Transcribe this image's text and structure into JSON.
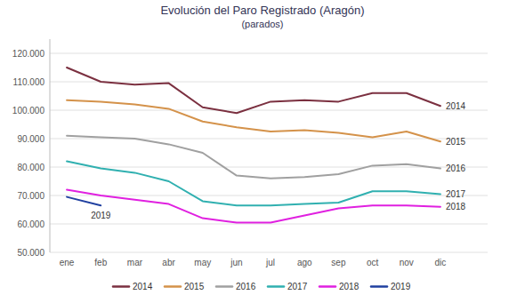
{
  "chart_data": {
    "type": "line",
    "title": "Evolución del Paro Registrado (Aragón)",
    "subtitle": "(parados)",
    "categories": [
      "ene",
      "feb",
      "mar",
      "abr",
      "may",
      "jun",
      "jul",
      "ago",
      "sep",
      "oct",
      "nov",
      "dic"
    ],
    "series": [
      {
        "name": "2014",
        "color": "#7B3040",
        "values": [
          115000,
          110000,
          109000,
          109500,
          101000,
          99000,
          103000,
          103500,
          103000,
          106000,
          106000,
          101500
        ]
      },
      {
        "name": "2015",
        "color": "#D4924A",
        "values": [
          103500,
          103000,
          102000,
          100500,
          96000,
          94000,
          92500,
          93000,
          92000,
          90500,
          92500,
          89000
        ]
      },
      {
        "name": "2016",
        "color": "#A0A0A0",
        "values": [
          91000,
          90500,
          90000,
          88000,
          85000,
          77000,
          76000,
          76500,
          77500,
          80500,
          81000,
          79500
        ]
      },
      {
        "name": "2017",
        "color": "#30B0B0",
        "values": [
          82000,
          79500,
          78000,
          75000,
          68000,
          66500,
          66500,
          67000,
          67500,
          71500,
          71500,
          70500
        ]
      },
      {
        "name": "2018",
        "color": "#E020E0",
        "values": [
          72000,
          70000,
          68500,
          67000,
          62000,
          60500,
          60500,
          63000,
          65500,
          66500,
          66500,
          66000
        ]
      },
      {
        "name": "2019",
        "color": "#2040A0",
        "values": [
          69500,
          66500,
          null,
          null,
          null,
          null,
          null,
          null,
          null,
          null,
          null,
          null
        ]
      }
    ],
    "ylim": [
      50000,
      125000
    ],
    "yticks": [
      {
        "value": 50000,
        "label": "50.000"
      },
      {
        "value": 60000,
        "label": "60.000"
      },
      {
        "value": 70000,
        "label": "70.000"
      },
      {
        "value": 80000,
        "label": "80.000"
      },
      {
        "value": 90000,
        "label": "90.000"
      },
      {
        "value": 100000,
        "label": "100.000"
      },
      {
        "value": 110000,
        "label": "110.000"
      },
      {
        "value": 120000,
        "label": "120.000"
      }
    ],
    "annotations": [
      {
        "text": "2014",
        "series": 0,
        "index": 11
      },
      {
        "text": "2015",
        "series": 1,
        "index": 11
      },
      {
        "text": "2016",
        "series": 2,
        "index": 11
      },
      {
        "text": "2017",
        "series": 3,
        "index": 11
      },
      {
        "text": "2018",
        "series": 4,
        "index": 11
      },
      {
        "text": "2019",
        "series": 5,
        "index": 1
      }
    ],
    "grid": true,
    "legend": "bottom"
  }
}
